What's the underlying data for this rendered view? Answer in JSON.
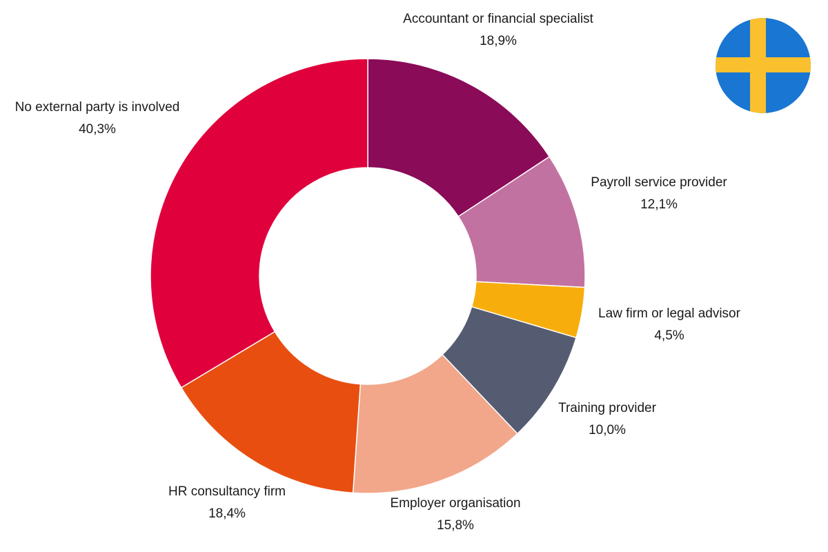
{
  "chart_data": {
    "type": "pie",
    "variant": "donut",
    "title": "",
    "slices": [
      {
        "label": "Accountant or financial specialist",
        "value": 18.9,
        "display": "18,9%",
        "color": "#8a0b58"
      },
      {
        "label": "Payroll service provider",
        "value": 12.1,
        "display": "12,1%",
        "color": "#c272a1"
      },
      {
        "label": "Law firm or legal advisor",
        "value": 4.5,
        "display": "4,5%",
        "color": "#f7ae0c"
      },
      {
        "label": "Training provider",
        "value": 10.0,
        "display": "10,0%",
        "color": "#555c72"
      },
      {
        "label": "Employer organisation",
        "value": 15.8,
        "display": "15,8%",
        "color": "#f2a78a"
      },
      {
        "label": "HR consultancy firm",
        "value": 18.4,
        "display": "18,4%",
        "color": "#e84e10"
      },
      {
        "label": "No external party is involved",
        "value": 40.3,
        "display": "40,3%",
        "color": "#e0003b"
      }
    ]
  },
  "flag": {
    "icon": "sweden-flag-icon",
    "colors": {
      "blue": "#1976d2",
      "yellow": "#fbc02d"
    }
  }
}
